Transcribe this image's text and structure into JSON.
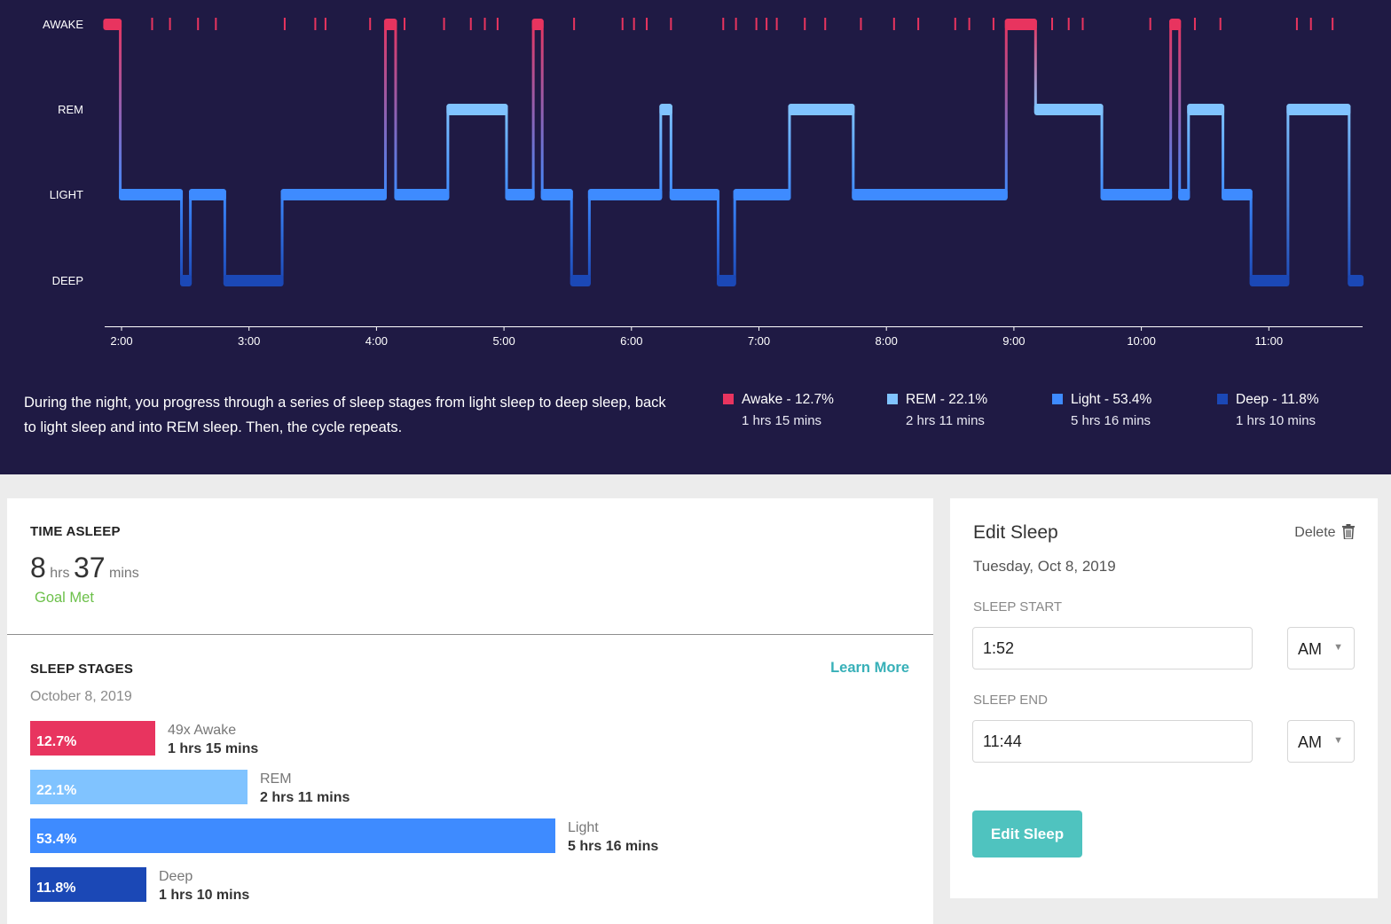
{
  "chart_data": {
    "type": "line",
    "title": "",
    "y_categories": [
      "AWAKE",
      "REM",
      "LIGHT",
      "DEEP"
    ],
    "x_ticks": [
      "2:00",
      "3:00",
      "4:00",
      "5:00",
      "6:00",
      "7:00",
      "8:00",
      "9:00",
      "10:00",
      "11:00"
    ],
    "x_range_hours": [
      1.867,
      11.733
    ],
    "segments": [
      {
        "start": 1.867,
        "end": 1.99,
        "stage": "AWAKE"
      },
      {
        "start": 1.99,
        "end": 2.47,
        "stage": "LIGHT"
      },
      {
        "start": 2.47,
        "end": 2.54,
        "stage": "DEEP"
      },
      {
        "start": 2.54,
        "end": 2.81,
        "stage": "LIGHT"
      },
      {
        "start": 2.81,
        "end": 3.26,
        "stage": "DEEP"
      },
      {
        "start": 3.26,
        "end": 4.07,
        "stage": "LIGHT"
      },
      {
        "start": 4.07,
        "end": 4.15,
        "stage": "AWAKE"
      },
      {
        "start": 4.15,
        "end": 4.56,
        "stage": "LIGHT"
      },
      {
        "start": 4.56,
        "end": 5.02,
        "stage": "REM"
      },
      {
        "start": 5.02,
        "end": 5.23,
        "stage": "LIGHT"
      },
      {
        "start": 5.23,
        "end": 5.3,
        "stage": "AWAKE"
      },
      {
        "start": 5.3,
        "end": 5.53,
        "stage": "LIGHT"
      },
      {
        "start": 5.53,
        "end": 5.67,
        "stage": "DEEP"
      },
      {
        "start": 5.67,
        "end": 6.23,
        "stage": "LIGHT"
      },
      {
        "start": 6.23,
        "end": 6.31,
        "stage": "REM"
      },
      {
        "start": 6.31,
        "end": 6.68,
        "stage": "LIGHT"
      },
      {
        "start": 6.68,
        "end": 6.81,
        "stage": "DEEP"
      },
      {
        "start": 6.81,
        "end": 7.24,
        "stage": "LIGHT"
      },
      {
        "start": 7.24,
        "end": 7.74,
        "stage": "REM"
      },
      {
        "start": 7.74,
        "end": 8.94,
        "stage": "LIGHT"
      },
      {
        "start": 8.94,
        "end": 9.17,
        "stage": "AWAKE"
      },
      {
        "start": 9.17,
        "end": 9.69,
        "stage": "REM"
      },
      {
        "start": 9.69,
        "end": 10.23,
        "stage": "LIGHT"
      },
      {
        "start": 10.23,
        "end": 10.3,
        "stage": "AWAKE"
      },
      {
        "start": 10.3,
        "end": 10.37,
        "stage": "LIGHT"
      },
      {
        "start": 10.37,
        "end": 10.64,
        "stage": "REM"
      },
      {
        "start": 10.64,
        "end": 10.86,
        "stage": "LIGHT"
      },
      {
        "start": 10.86,
        "end": 11.15,
        "stage": "DEEP"
      },
      {
        "start": 11.15,
        "end": 11.63,
        "stage": "REM"
      },
      {
        "start": 11.63,
        "end": 11.733,
        "stage": "DEEP"
      }
    ],
    "awake_ticks": [
      2.24,
      2.38,
      2.6,
      2.74,
      3.28,
      3.52,
      3.6,
      3.95,
      4.22,
      4.53,
      4.74,
      4.85,
      4.95,
      5.55,
      5.93,
      6.02,
      6.12,
      6.31,
      6.72,
      6.82,
      6.98,
      7.06,
      7.14,
      7.36,
      7.52,
      7.8,
      8.06,
      8.25,
      8.54,
      8.65,
      8.84,
      9.3,
      9.43,
      9.54,
      10.07,
      10.42,
      10.62,
      11.22,
      11.33,
      11.5
    ]
  },
  "hypnogram": {
    "description": "During the night, you progress through a series of sleep stages from light sleep to deep sleep, back to light sleep and into REM sleep. Then, the cycle repeats.",
    "legend": [
      {
        "label": "Awake - 12.7%",
        "duration": "1 hrs 15 mins",
        "color": "#e8345f"
      },
      {
        "label": "REM - 22.1%",
        "duration": "2 hrs 11 mins",
        "color": "#80c3ff"
      },
      {
        "label": "Light - 53.4%",
        "duration": "5 hrs 16 mins",
        "color": "#3e8bff"
      },
      {
        "label": "Deep - 11.8%",
        "duration": "1 hrs 10 mins",
        "color": "#1b48b6"
      }
    ]
  },
  "time_asleep": {
    "title": "TIME ASLEEP",
    "hours": "8",
    "hours_unit": "hrs",
    "minutes": "37",
    "minutes_unit": "mins",
    "goal_status": "Goal Met"
  },
  "sleep_stages": {
    "title": "SLEEP STAGES",
    "learn_more": "Learn More",
    "date": "October 8, 2019",
    "rows": [
      {
        "percent_label": "12.7%",
        "percent": 12.7,
        "title": "49x Awake",
        "duration": "1 hrs 15 mins",
        "color": "#e8345f"
      },
      {
        "percent_label": "22.1%",
        "percent": 22.1,
        "title": "REM",
        "duration": "2 hrs 11 mins",
        "color": "#80c3ff"
      },
      {
        "percent_label": "53.4%",
        "percent": 53.4,
        "title": "Light",
        "duration": "5 hrs 16 mins",
        "color": "#3e8bff"
      },
      {
        "percent_label": "11.8%",
        "percent": 11.8,
        "title": "Deep",
        "duration": "1 hrs 10 mins",
        "color": "#1b48b6"
      }
    ]
  },
  "edit_sleep": {
    "title": "Edit Sleep",
    "delete_label": "Delete",
    "date": "Tuesday, Oct 8, 2019",
    "start_label": "SLEEP START",
    "start_value": "1:52",
    "start_ampm": "AM",
    "end_label": "SLEEP END",
    "end_value": "11:44",
    "end_ampm": "AM",
    "button_label": "Edit Sleep",
    "button_color": "#4fc3bf"
  }
}
